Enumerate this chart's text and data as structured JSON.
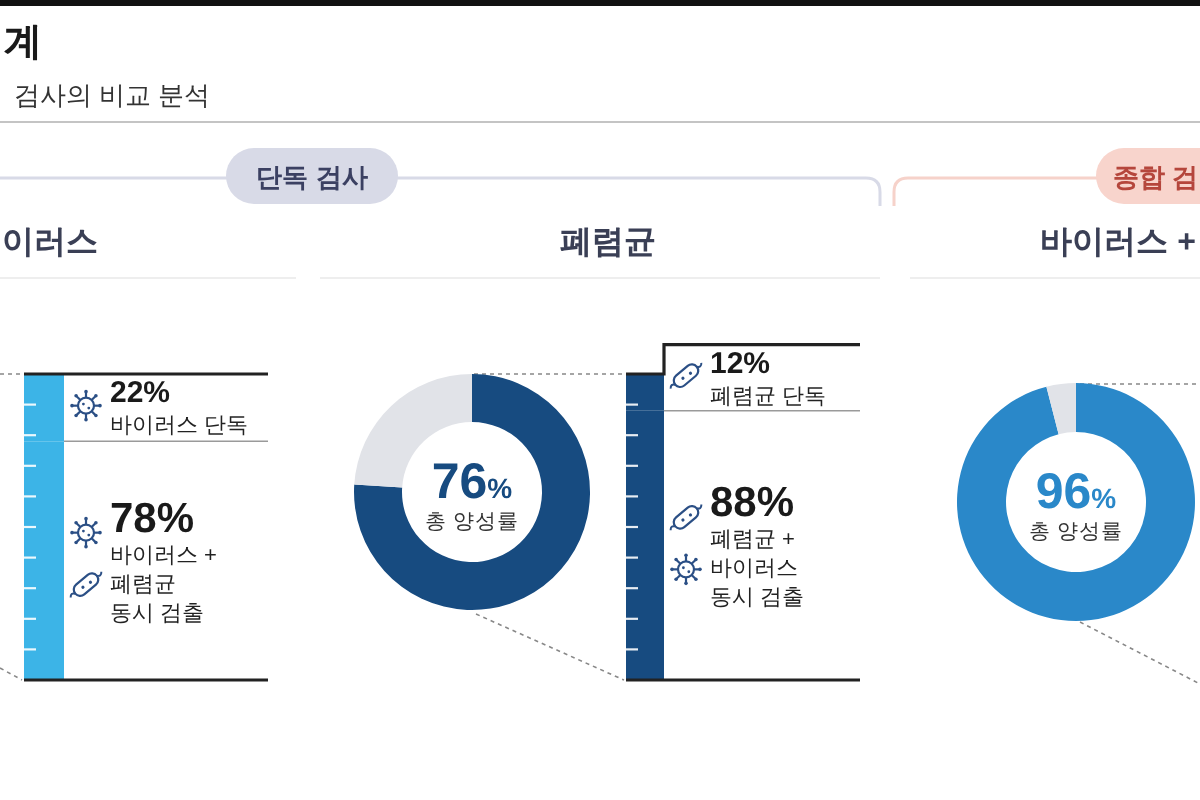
{
  "chart_data": [
    {
      "type": "other",
      "title": "계",
      "subtitle": "검사의 비교 분석",
      "annotations": [
        "단독 검사",
        "종합 검"
      ]
    },
    {
      "type": "bar",
      "title": "이러스",
      "stacked": true,
      "categories": [
        null
      ],
      "ylim": [
        0,
        100
      ],
      "yticks": [
        {
          "value": 10,
          "label": null
        },
        {
          "value": 20,
          "label": null
        },
        {
          "value": 30,
          "label": null
        },
        {
          "value": 40,
          "label": null
        },
        {
          "value": 50,
          "label": null
        },
        {
          "value": 60,
          "label": null
        },
        {
          "value": 70,
          "label": null
        },
        {
          "value": 80,
          "label": null
        },
        {
          "value": 90,
          "label": null
        }
      ],
      "series": [
        {
          "name": "바이러스 +\n폐렴균\n동시 검출",
          "color": "#3cb4e7",
          "values": [
            78
          ],
          "value_labels": [
            "78%"
          ]
        },
        {
          "name": "바이러스 단독",
          "color": "#3cb4e7",
          "values": [
            22
          ],
          "value_labels": [
            "22%"
          ]
        }
      ]
    },
    {
      "type": "donut",
      "title": "폐렴균",
      "categories": [
        null,
        null
      ],
      "values": [
        76,
        24
      ],
      "colors": [
        "#174b80",
        "#e1e3e8"
      ],
      "value_labels": [
        "76%",
        null
      ],
      "annotations": [
        "총 양성률"
      ]
    },
    {
      "type": "bar",
      "stacked": true,
      "categories": [
        null
      ],
      "ylim": [
        0,
        100
      ],
      "yticks": [
        {
          "value": 10,
          "label": null
        },
        {
          "value": 20,
          "label": null
        },
        {
          "value": 30,
          "label": null
        },
        {
          "value": 40,
          "label": null
        },
        {
          "value": 50,
          "label": null
        },
        {
          "value": 60,
          "label": null
        },
        {
          "value": 70,
          "label": null
        },
        {
          "value": 80,
          "label": null
        },
        {
          "value": 90,
          "label": null
        }
      ],
      "series": [
        {
          "name": "폐렴균 +\n바이러스\n동시 검출",
          "color": "#174b80",
          "values": [
            88
          ],
          "value_labels": [
            "88%"
          ]
        },
        {
          "name": "폐렴균 단독",
          "color": "#174b80",
          "values": [
            12
          ],
          "value_labels": [
            "12%"
          ]
        }
      ]
    },
    {
      "type": "donut",
      "title": "바이러스 +",
      "categories": [
        null,
        null
      ],
      "values": [
        96,
        4
      ],
      "colors": [
        "#2a88c9",
        "#e1e3e8"
      ],
      "value_labels": [
        "96%",
        null
      ],
      "annotations": [
        "총 양성률"
      ]
    }
  ]
}
